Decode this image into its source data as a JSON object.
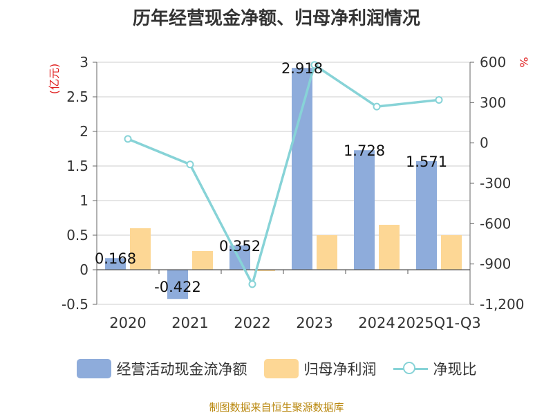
{
  "title": "历年经营现金净额、归母净利润情况",
  "source": "制图数据来自恒生聚源数据库",
  "colors": {
    "cash": "#8eacdb",
    "profit": "#fdd795",
    "ratio": "#87d3d7",
    "axis_title": "#e02020"
  },
  "chart_data": {
    "type": "bar",
    "categories": [
      "2020",
      "2021",
      "2022",
      "2023",
      "2024",
      "2025Q1-Q3"
    ],
    "series": [
      {
        "name": "经营活动现金流净额",
        "type": "bar",
        "axis": "left",
        "values": [
          0.168,
          -0.422,
          0.352,
          2.918,
          1.728,
          1.571
        ],
        "labels": [
          "0.168",
          "-0.422",
          "0.352",
          "2.918",
          "1.728",
          "1.571"
        ]
      },
      {
        "name": "归母净利润",
        "type": "bar",
        "axis": "left",
        "values": [
          0.6,
          0.27,
          -0.02,
          0.5,
          0.65,
          0.5
        ]
      },
      {
        "name": "净现比",
        "type": "line",
        "axis": "right",
        "values": [
          30,
          -160,
          -1050,
          580,
          270,
          320
        ]
      }
    ],
    "y_left": {
      "label": "(亿元)",
      "min": -0.5,
      "max": 3,
      "ticks": [
        -0.5,
        0,
        0.5,
        1,
        1.5,
        2,
        2.5,
        3
      ],
      "tick_labels": [
        "-0.5",
        "0",
        "0.5",
        "1",
        "1.5",
        "2",
        "2.5",
        "3"
      ]
    },
    "y_right": {
      "label": "%",
      "min": -1200,
      "max": 600,
      "ticks": [
        -1200,
        -900,
        -600,
        -300,
        0,
        300,
        600
      ],
      "tick_labels": [
        "-1,200",
        "-900",
        "-600",
        "-300",
        "0",
        "300",
        "600"
      ]
    },
    "grid": true,
    "legend_position": "bottom"
  }
}
